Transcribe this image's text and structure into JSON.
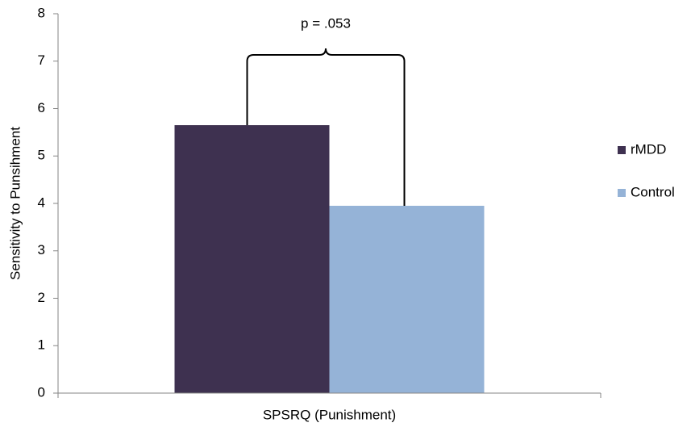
{
  "chart_data": {
    "type": "bar",
    "categories": [
      "SPSRQ (Punishment)"
    ],
    "series": [
      {
        "name": "rMDD",
        "color": "#3e3150",
        "values": [
          5.65
        ]
      },
      {
        "name": "Control",
        "color": "#95b3d7",
        "values": [
          3.95
        ]
      }
    ],
    "ylabel": "Sensitivity to Punsihment",
    "annotation": "p = .053",
    "ylim": [
      0,
      8
    ],
    "yticks": [
      0,
      1,
      2,
      3,
      4,
      5,
      6,
      7,
      8
    ],
    "grid": false,
    "legend": "right"
  }
}
